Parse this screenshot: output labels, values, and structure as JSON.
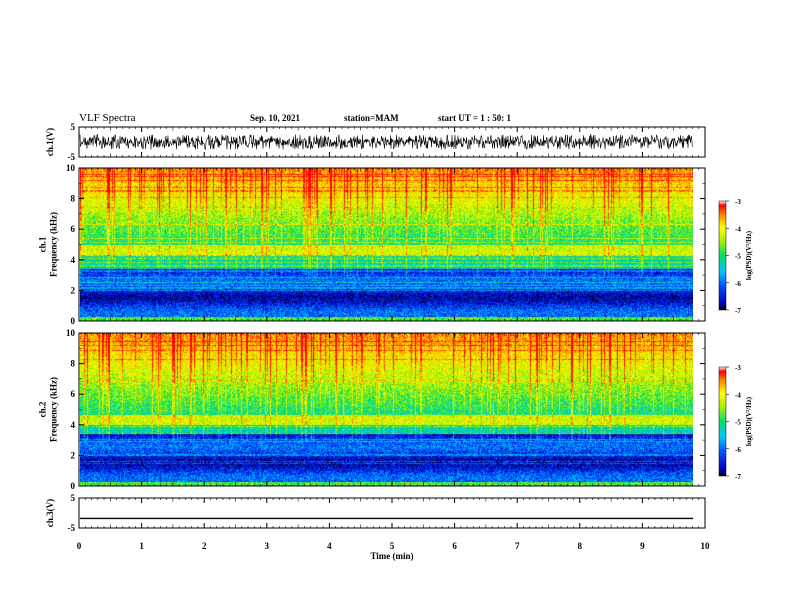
{
  "header": {
    "title": "VLF Spectra",
    "date": "Sep. 10, 2021",
    "station": "station=MAM",
    "start": "start  UT =  1 : 50: 1"
  },
  "chart_data": [
    {
      "type": "line",
      "panel": "ch1-waveform",
      "ylabel": "ch.1(V)",
      "ylim": [
        -5,
        5
      ],
      "yticks": [
        "5",
        "-5"
      ],
      "xlim": [
        0,
        10
      ],
      "description_values": {
        "amplitude_range": [
          -2.5,
          2.5
        ]
      }
    },
    {
      "type": "heatmap",
      "panel": "ch1-spectrogram",
      "ylabel": "ch.1\nFrequency (kHz)",
      "ylim": [
        0,
        10
      ],
      "yticks": [
        "0",
        "2",
        "4",
        "6",
        "8",
        "10"
      ],
      "xlim": [
        0,
        10
      ],
      "colorbar": {
        "label": "log(PSD)(V²/Hz)",
        "range": [
          -7,
          -3
        ],
        "ticks": [
          "-3",
          "-4",
          "-5",
          "-6",
          "-7"
        ]
      }
    },
    {
      "type": "heatmap",
      "panel": "ch2-spectrogram",
      "ylabel": "ch.2\nFrequency (kHz)",
      "ylim": [
        0,
        10
      ],
      "yticks": [
        "0",
        "2",
        "4",
        "6",
        "8",
        "10"
      ],
      "xlim": [
        0,
        10
      ],
      "colorbar": {
        "label": "log(PSD)(V²/Hz)",
        "range": [
          -7,
          -3
        ],
        "ticks": [
          "-3",
          "-4",
          "-5",
          "-6",
          "-7"
        ]
      }
    },
    {
      "type": "line",
      "panel": "ch3-waveform",
      "ylabel": "ch.3(V)",
      "ylim": [
        -5,
        5
      ],
      "yticks": [
        "5",
        "-5"
      ],
      "xlim": [
        0,
        10
      ],
      "series": [
        {
          "values": [
            -1.8,
            -1.8
          ]
        }
      ]
    }
  ],
  "xaxis": {
    "label": "Time (min)",
    "ticks": [
      "0",
      "1",
      "2",
      "3",
      "4",
      "5",
      "6",
      "7",
      "8",
      "9",
      "10"
    ]
  },
  "colors": {
    "axis": "#000000",
    "background": "#ffffff"
  }
}
